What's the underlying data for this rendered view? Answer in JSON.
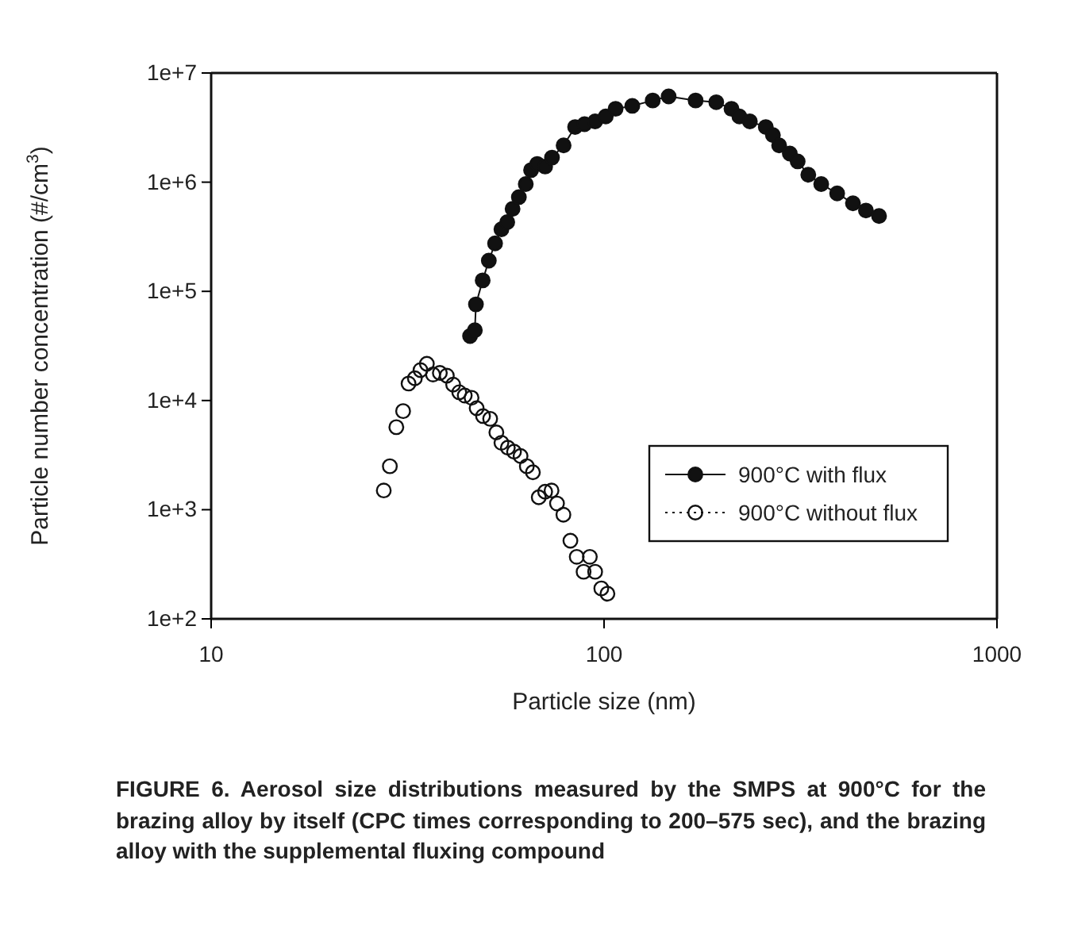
{
  "chart_data": {
    "type": "line",
    "xlabel": "Particle size (nm)",
    "ylabel": "Particle number concentration (#/cm$^{3}$)",
    "log": "xy",
    "xlim": [
      10,
      1000
    ],
    "xticks": [
      10,
      100,
      1000
    ],
    "ylim": [
      100,
      10000000
    ],
    "yticks": [
      {
        "value": 10000000,
        "label": "1e+7"
      },
      {
        "value": 1000000,
        "label": "1e+6"
      },
      {
        "value": 100000,
        "label": "1e+5"
      },
      {
        "value": 10000,
        "label": "1e+4"
      },
      {
        "value": 1000,
        "label": "1e+3"
      },
      {
        "value": 100,
        "label": "1e+2"
      }
    ],
    "grid": false,
    "legend": "right",
    "marker": "circle",
    "series": [
      {
        "name": "900°C with flux",
        "color": "#111111",
        "line_style": "solid",
        "x": [
          45.6,
          46.9,
          47.2,
          49.1,
          50.9,
          52.8,
          54.8,
          56.7,
          58.5,
          60.7,
          63.2,
          65.2,
          67.6,
          70.8,
          73.7,
          78.9,
          84.4,
          89.2,
          94.9,
          101,
          107,
          118,
          133,
          146,
          171,
          193,
          211,
          221,
          235,
          258,
          269,
          279,
          297,
          311,
          331,
          357,
          392,
          430,
          464,
          501
        ],
        "values": [
          39000,
          44000,
          76000,
          126000,
          191000,
          275000,
          370000,
          430000,
          570000,
          730000,
          960000,
          1290000,
          1470000,
          1390000,
          1680000,
          2170000,
          3200000,
          3400000,
          3600000,
          4000000,
          4700000,
          5000000,
          5600000,
          6100000,
          5600000,
          5400000,
          4700000,
          4000000,
          3600000,
          3200000,
          2700000,
          2170000,
          1830000,
          1550000,
          1170000,
          960000,
          790000,
          640000,
          550000,
          490000
        ]
      },
      {
        "name": "900°C without flux",
        "type": "scatter",
        "color": "#111111",
        "line_style": "dotted",
        "x": [
          27.5,
          28.5,
          29.6,
          30.8,
          31.8,
          33.0,
          34.1,
          35.4,
          36.7,
          38.2,
          39.8,
          41.3,
          42.8,
          44.2,
          46.0,
          47.4,
          49.2,
          51.3,
          53.2,
          54.8,
          56.9,
          59.0,
          61.3,
          63.6,
          65.9,
          68.2,
          70.8,
          73.5,
          75.9,
          78.8,
          82.1,
          85.2,
          88.7,
          92.0,
          94.9,
          98.4,
          102
        ],
        "values": [
          1500,
          2500,
          5700,
          8000,
          14300,
          16000,
          19000,
          21700,
          17300,
          17900,
          16900,
          14000,
          11900,
          11100,
          10600,
          8500,
          7200,
          6800,
          5100,
          4100,
          3700,
          3400,
          3100,
          2500,
          2200,
          1300,
          1460,
          1500,
          1140,
          900,
          520,
          370,
          270,
          370,
          270,
          190,
          170
        ]
      }
    ],
    "annotations": [
      "FIGURE 6.   Aerosol size distributions measured by the SMPS at 900°C for the brazing alloy by itself (CPC times corresponding to 200–575 sec), and the brazing alloy with the supplemental fluxing compound"
    ]
  }
}
